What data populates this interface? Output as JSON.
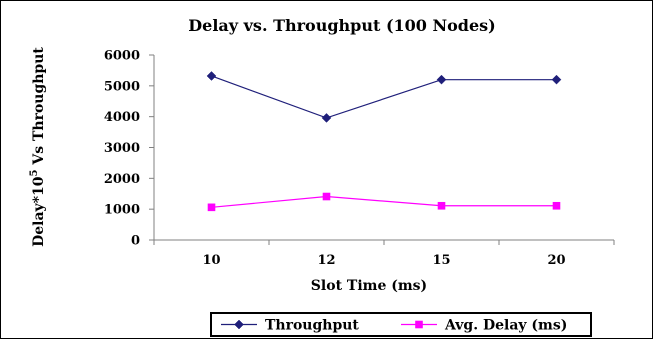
{
  "chart_data": {
    "type": "line",
    "title": "Delay vs. Throughput (100 Nodes)",
    "xlabel": "Slot Time (ms)",
    "ylabel": {
      "prefix": "Delay*10",
      "superscript": "5",
      "suffix": " Vs Throughput"
    },
    "categories": [
      "10",
      "12",
      "15",
      "20"
    ],
    "ylim": [
      0,
      6000
    ],
    "yticks": [
      "0",
      "1000",
      "2000",
      "3000",
      "4000",
      "5000",
      "6000"
    ],
    "series": [
      {
        "name": "Throughput",
        "values": [
          5320,
          3960,
          5200,
          5200
        ],
        "color": "#1f1f7a",
        "marker": "diamond"
      },
      {
        "name": "Avg. Delay (ms)",
        "values": [
          1060,
          1410,
          1110,
          1110
        ],
        "color": "#ff00ff",
        "marker": "square"
      }
    ],
    "legend_position": "bottom",
    "grid": false
  }
}
